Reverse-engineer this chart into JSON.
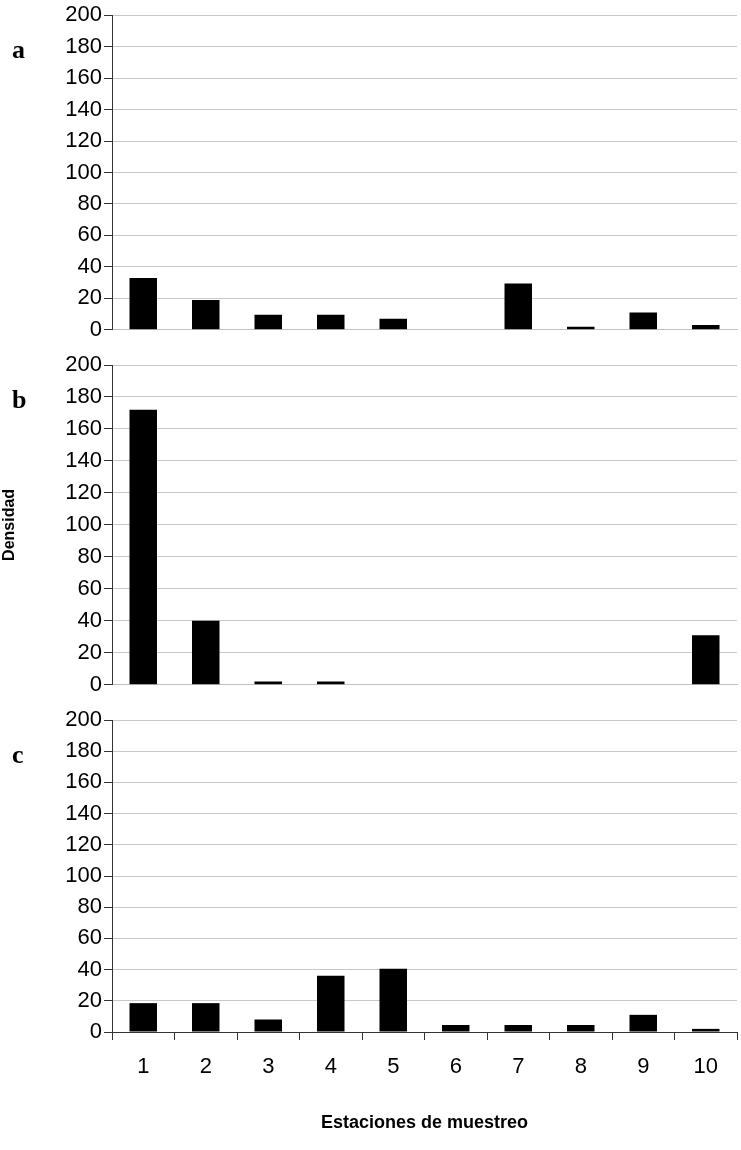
{
  "chart_data": [
    {
      "type": "bar",
      "title": "a",
      "categories": [
        "1",
        "2",
        "3",
        "4",
        "5",
        "6",
        "7",
        "8",
        "9",
        "10"
      ],
      "values": [
        33,
        19,
        9.5,
        9.5,
        7,
        0,
        29.5,
        2,
        11,
        3
      ],
      "color": "#000000",
      "ylim": [
        0,
        200
      ],
      "yticks": [
        0,
        20,
        40,
        60,
        80,
        100,
        120,
        140,
        160,
        180,
        200
      ],
      "grid": "y",
      "tick_labels": "y"
    },
    {
      "type": "bar",
      "title": "b",
      "ylabel": "Densidad",
      "categories": [
        "1",
        "2",
        "3",
        "4",
        "5",
        "6",
        "7",
        "8",
        "9",
        "10"
      ],
      "values": [
        172,
        40,
        2,
        2,
        0,
        0,
        0,
        0,
        0,
        31
      ],
      "color": "#000000",
      "ylim": [
        0,
        200
      ],
      "yticks": [
        0,
        20,
        40,
        60,
        80,
        100,
        120,
        140,
        160,
        180,
        200
      ],
      "grid": "y",
      "tick_labels": "y"
    },
    {
      "type": "bar",
      "title": "c",
      "xlabel": "Estaciones de muestreo",
      "categories": [
        "1",
        "2",
        "3",
        "4",
        "5",
        "6",
        "7",
        "8",
        "9",
        "10"
      ],
      "values": [
        18.5,
        18.5,
        8,
        36,
        40.5,
        4.5,
        4.5,
        4.5,
        11,
        2
      ],
      "color": "#000000",
      "ylim": [
        0,
        200
      ],
      "yticks": [
        0,
        20,
        40,
        60,
        80,
        100,
        120,
        140,
        160,
        180,
        200
      ],
      "grid": "y"
    }
  ]
}
